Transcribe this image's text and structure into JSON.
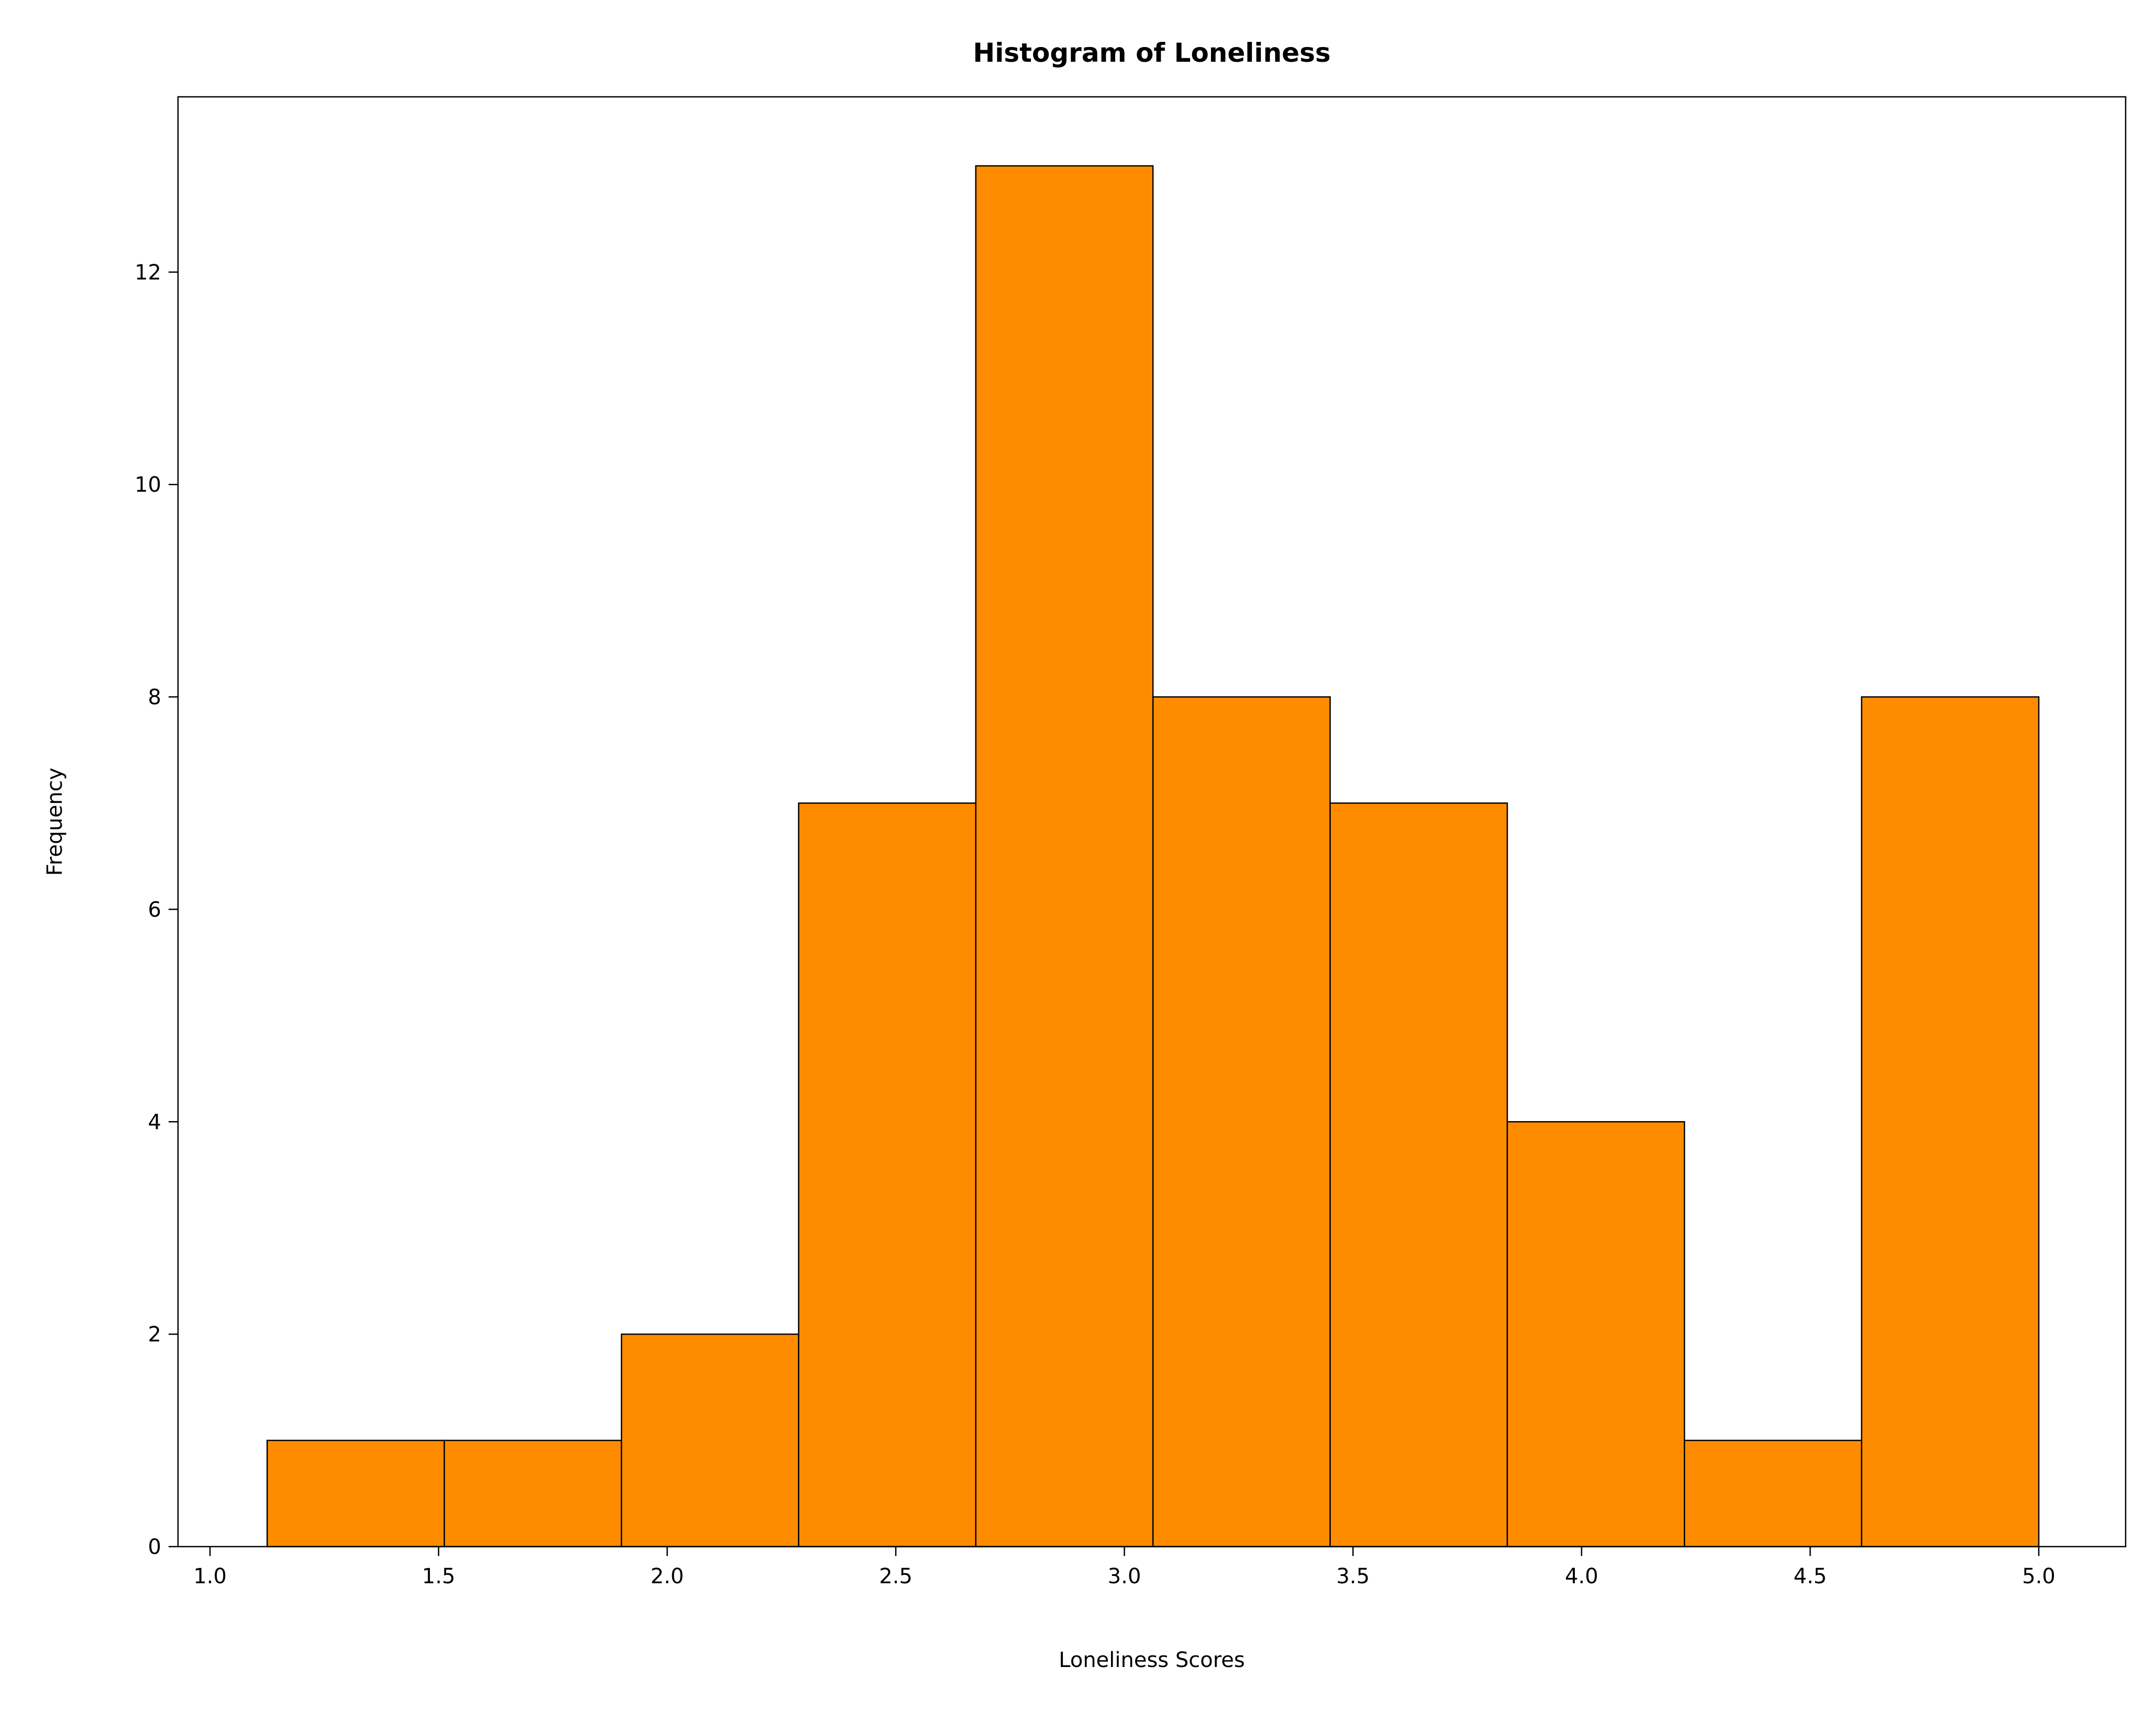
{
  "chart_data": {
    "type": "bar",
    "histogram": true,
    "title": "Histogram of Loneliness",
    "xlabel": "Loneliness Scores",
    "ylabel": "Frequency",
    "bin_edges": [
      1.125,
      1.5125,
      1.9,
      2.2875,
      2.675,
      3.0625,
      3.45,
      3.8375,
      4.225,
      4.6125,
      5.0
    ],
    "values": [
      1,
      1,
      2,
      7,
      13,
      8,
      7,
      4,
      1,
      8
    ],
    "xlim": [
      0.93,
      5.19
    ],
    "ylim": [
      0,
      13.65
    ],
    "xticks": [
      "1.0",
      "1.5",
      "2.0",
      "2.5",
      "3.0",
      "3.5",
      "4.0",
      "4.5",
      "5.0"
    ],
    "yticks": [
      "0",
      "2",
      "4",
      "6",
      "8",
      "10",
      "12"
    ],
    "bar_color": "#ff8c00",
    "edge_color": "#000000",
    "grid": false
  }
}
